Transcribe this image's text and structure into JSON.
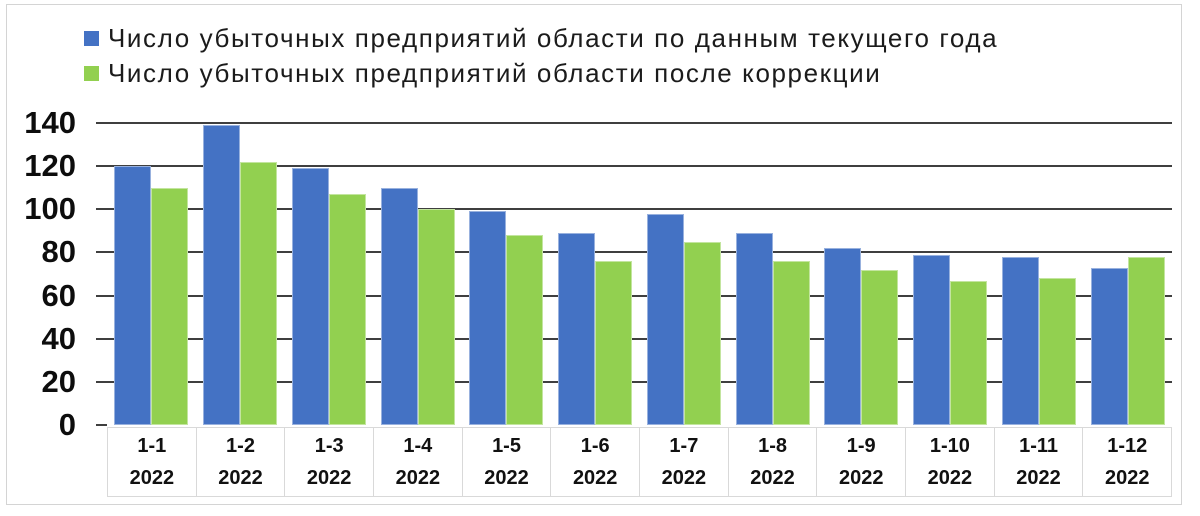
{
  "chart_data": {
    "type": "bar",
    "title": "",
    "categories": [
      "1-1",
      "1-2",
      "1-3",
      "1-4",
      "1-5",
      "1-6",
      "1-7",
      "1-8",
      "1-9",
      "1-10",
      "1-11",
      "1-12"
    ],
    "category_year": "2022",
    "series": [
      {
        "name": "Число убыточных предприятий области по данным текущего года",
        "color": "#4472C4",
        "values": [
          120,
          139,
          119,
          110,
          99,
          89,
          98,
          89,
          82,
          79,
          78,
          73
        ]
      },
      {
        "name": "Число убыточных предприятий области после коррекции",
        "color": "#92D050",
        "values": [
          110,
          122,
          107,
          100,
          88,
          76,
          85,
          76,
          72,
          67,
          68,
          78
        ]
      }
    ],
    "ylim": [
      0,
      140
    ],
    "yticks": [
      0,
      20,
      40,
      60,
      80,
      100,
      120,
      140
    ],
    "ytick_interval": 20,
    "grid": "horizontal",
    "legend_position": "top-left"
  },
  "style": {
    "gridline_color": "#3f3f3f",
    "axis_box_border_color": "#d9d9d9",
    "chart_frame_border_color": "#d4d4d4",
    "text_color": "#0d0d0d",
    "background_color": "#ffffff"
  }
}
